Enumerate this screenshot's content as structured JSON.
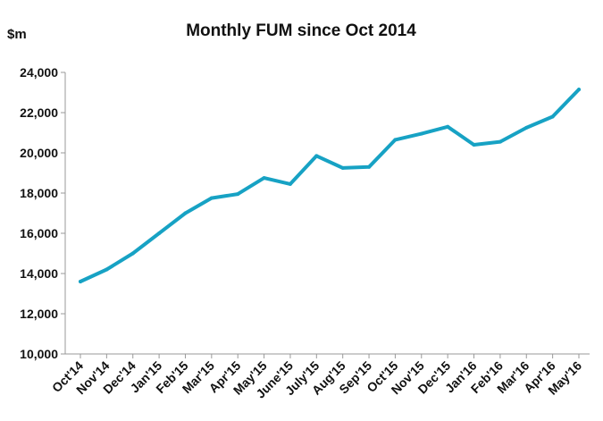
{
  "chart_data": {
    "type": "line",
    "title": "Monthly FUM since Oct 2014",
    "ylabel": "$m",
    "xlabel": "",
    "ylim": [
      10000,
      24000
    ],
    "yticks": [
      10000,
      12000,
      14000,
      16000,
      18000,
      20000,
      22000,
      24000
    ],
    "ytick_labels": [
      "10,000",
      "12,000",
      "14,000",
      "16,000",
      "18,000",
      "20,000",
      "22,000",
      "24,000"
    ],
    "grid": false,
    "legend": "none",
    "line_color": "#17a2c4",
    "categories": [
      "Oct'14",
      "Nov'14",
      "Dec'14",
      "Jan'15",
      "Feb'15",
      "Mar'15",
      "Apr'15",
      "May'15",
      "June'15",
      "July'15",
      "Aug'15",
      "Sep'15",
      "Oct'15",
      "Nov'15",
      "Dec'15",
      "Jan'16",
      "Feb'16",
      "Mar'16",
      "Apr'16",
      "May'16"
    ],
    "series": [
      {
        "values": [
          13600,
          14200,
          15000,
          16000,
          17000,
          17750,
          17950,
          18750,
          18450,
          19850,
          19250,
          19300,
          20650,
          20950,
          21300,
          20400,
          20550,
          21250,
          21800,
          23150
        ]
      }
    ]
  }
}
